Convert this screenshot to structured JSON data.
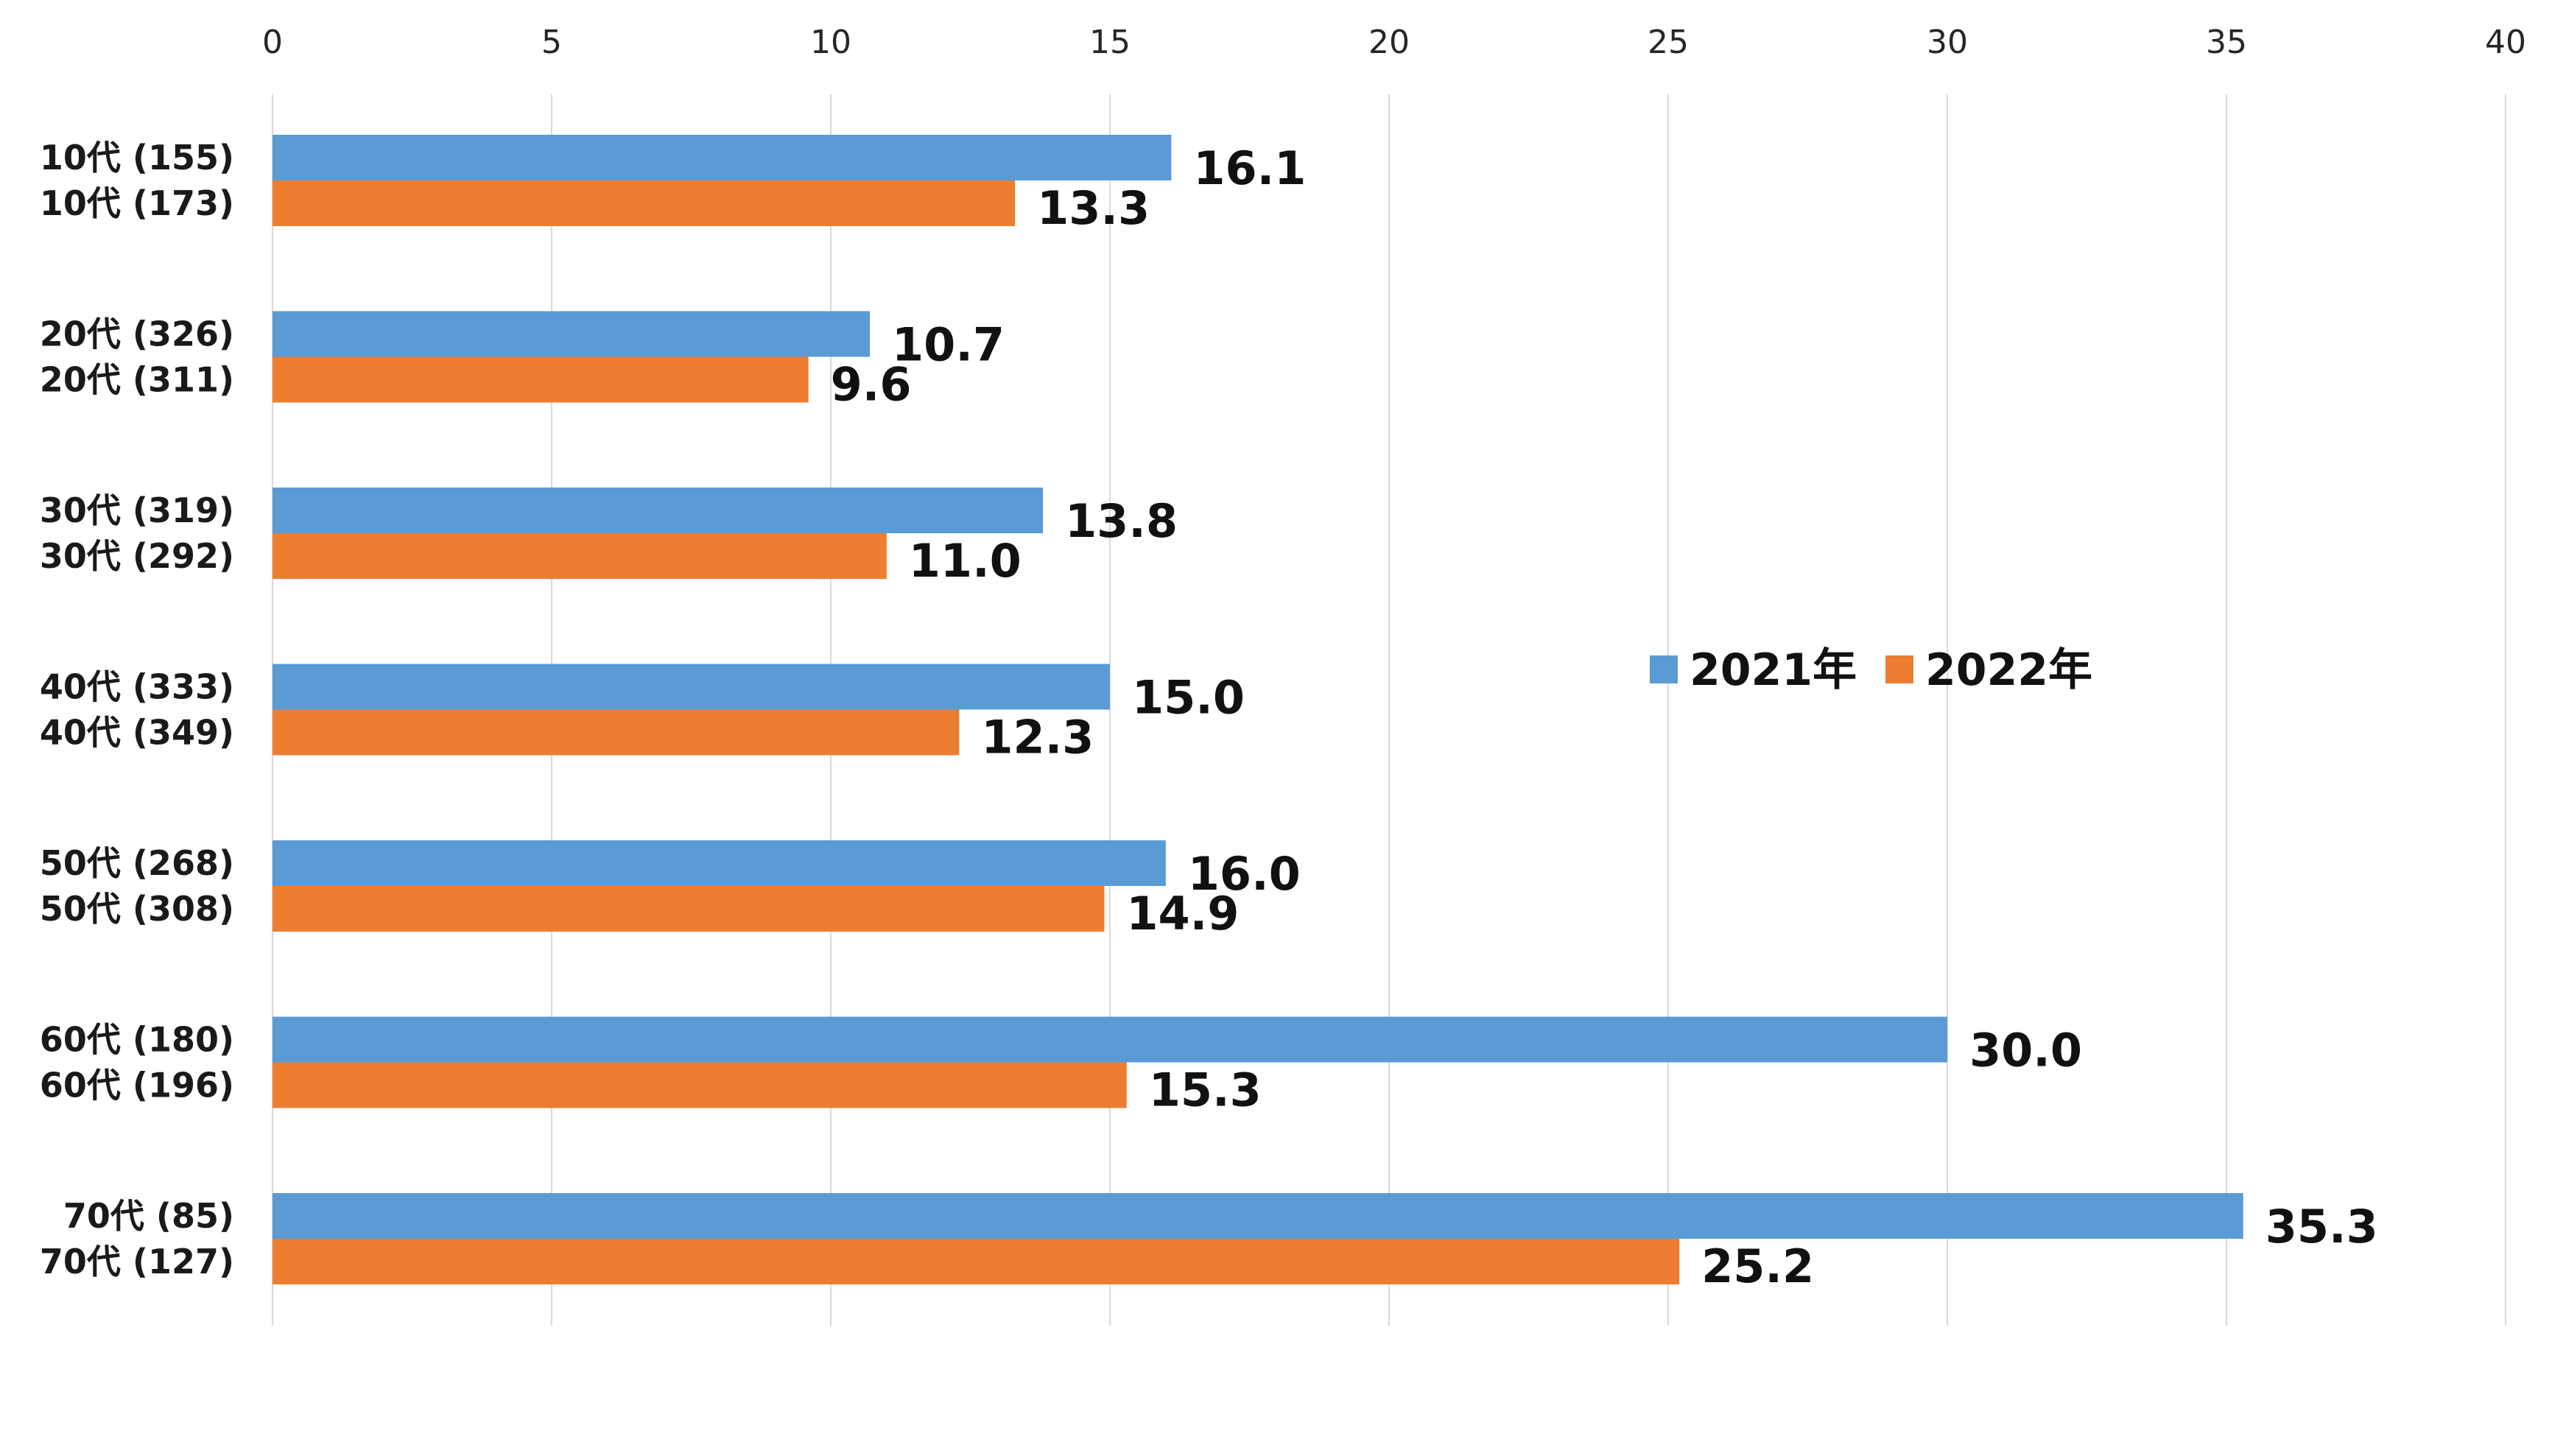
{
  "colors": {
    "series_2021": "#5b9bd5",
    "series_2022": "#ed7d31",
    "grid": "#d9d9d9",
    "text": "#1a1a1a"
  },
  "chart_data": {
    "type": "bar",
    "orientation": "horizontal",
    "title": "",
    "xlabel": "",
    "ylabel": "",
    "xlim": [
      0,
      40
    ],
    "x_ticks": [
      "0",
      "5",
      "10",
      "15",
      "20",
      "25",
      "30",
      "35",
      "40"
    ],
    "x_tick_position": "top",
    "grid": "vertical",
    "legend_position": "center-right",
    "groups": [
      {
        "labels": [
          "10代 (155)",
          "10代 (173)"
        ],
        "values": [
          16.1,
          13.3
        ],
        "data_labels": [
          "16.1",
          "13.3"
        ]
      },
      {
        "labels": [
          "20代 (326)",
          "20代 (311)"
        ],
        "values": [
          10.7,
          9.6
        ],
        "data_labels": [
          "10.7",
          "9.6"
        ]
      },
      {
        "labels": [
          "30代 (319)",
          "30代 (292)"
        ],
        "values": [
          13.8,
          11.0
        ],
        "data_labels": [
          "13.8",
          "11.0"
        ]
      },
      {
        "labels": [
          "40代 (333)",
          "40代 (349)"
        ],
        "values": [
          15.0,
          12.3
        ],
        "data_labels": [
          "15.0",
          "12.3"
        ]
      },
      {
        "labels": [
          "50代 (268)",
          "50代 (308)"
        ],
        "values": [
          16.0,
          14.9
        ],
        "data_labels": [
          "16.0",
          "14.9"
        ]
      },
      {
        "labels": [
          "60代 (180)",
          "60代 (196)"
        ],
        "values": [
          30.0,
          15.3
        ],
        "data_labels": [
          "30.0",
          "15.3"
        ]
      },
      {
        "labels": [
          "70代 (85)",
          "70代 (127)"
        ],
        "values": [
          35.3,
          25.2
        ],
        "data_labels": [
          "35.3",
          "25.2"
        ]
      }
    ],
    "series": [
      {
        "name": "2021年",
        "values": [
          16.1,
          10.7,
          13.8,
          15.0,
          16.0,
          30.0,
          35.3
        ]
      },
      {
        "name": "2022年",
        "values": [
          13.3,
          9.6,
          11.0,
          12.3,
          14.9,
          15.3,
          25.2
        ]
      }
    ]
  }
}
